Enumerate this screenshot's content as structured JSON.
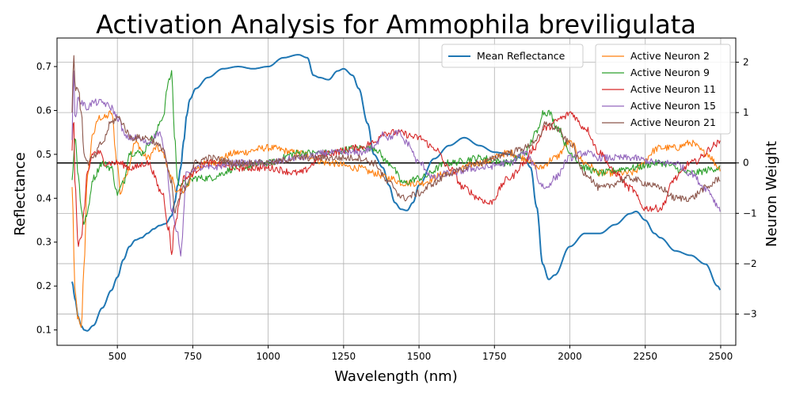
{
  "chart_data": {
    "type": "line",
    "title": "Activation Analysis for Ammophila breviligulata",
    "xlabel": "Wavelength (nm)",
    "ylabel_left": "Reflectance",
    "ylabel_right": "Neuron Weight",
    "xlim": [
      300,
      2550
    ],
    "ylim_left": [
      0.065,
      0.765
    ],
    "ylim_right": [
      -3.62,
      2.48
    ],
    "x_ticks": [
      500,
      750,
      1000,
      1250,
      1500,
      1750,
      2000,
      2250,
      2500
    ],
    "y_ticks_left": [
      0.1,
      0.2,
      0.3,
      0.4,
      0.5,
      0.6,
      0.7
    ],
    "y_ticks_right": [
      -3,
      -2,
      -1,
      0,
      1,
      2
    ],
    "grid": true,
    "zero_line_right": 0,
    "legend_left": {
      "placement": "top-center",
      "entries": [
        "Mean Reflectance"
      ]
    },
    "legend_right": {
      "placement": "top-right",
      "entries": [
        "Active Neuron 2",
        "Active Neuron 9",
        "Active Neuron 11",
        "Active Neuron 15",
        "Active Neuron 21"
      ]
    },
    "series": [
      {
        "name": "Mean Reflectance",
        "axis": "left",
        "color": "#1f77b4",
        "x": [
          350,
          360,
          370,
          380,
          390,
          400,
          420,
          450,
          480,
          500,
          520,
          540,
          560,
          580,
          600,
          620,
          640,
          660,
          680,
          690,
          700,
          710,
          720,
          730,
          740,
          760,
          800,
          850,
          900,
          950,
          1000,
          1050,
          1100,
          1130,
          1150,
          1170,
          1200,
          1230,
          1250,
          1280,
          1300,
          1330,
          1350,
          1380,
          1400,
          1420,
          1440,
          1460,
          1480,
          1500,
          1550,
          1600,
          1650,
          1700,
          1750,
          1800,
          1850,
          1870,
          1890,
          1910,
          1930,
          1950,
          2000,
          2050,
          2100,
          2150,
          2200,
          2220,
          2250,
          2280,
          2300,
          2350,
          2400,
          2450,
          2490,
          2500
        ],
        "values": [
          0.21,
          0.17,
          0.13,
          0.11,
          0.1,
          0.098,
          0.11,
          0.15,
          0.19,
          0.22,
          0.26,
          0.29,
          0.305,
          0.31,
          0.32,
          0.33,
          0.338,
          0.342,
          0.36,
          0.39,
          0.43,
          0.47,
          0.53,
          0.59,
          0.625,
          0.65,
          0.675,
          0.695,
          0.7,
          0.695,
          0.7,
          0.72,
          0.727,
          0.72,
          0.68,
          0.675,
          0.67,
          0.69,
          0.695,
          0.68,
          0.65,
          0.57,
          0.5,
          0.47,
          0.43,
          0.39,
          0.375,
          0.372,
          0.39,
          0.43,
          0.49,
          0.52,
          0.538,
          0.52,
          0.505,
          0.5,
          0.49,
          0.47,
          0.38,
          0.25,
          0.215,
          0.225,
          0.29,
          0.32,
          0.32,
          0.34,
          0.365,
          0.37,
          0.35,
          0.32,
          0.31,
          0.28,
          0.27,
          0.25,
          0.2,
          0.19
        ]
      },
      {
        "name": "Active Neuron 2",
        "axis": "right",
        "color": "#ff7f0e",
        "x": [
          350,
          360,
          370,
          380,
          390,
          400,
          420,
          440,
          460,
          480,
          500,
          510,
          530,
          560,
          600,
          630,
          650,
          680,
          700,
          730,
          760,
          800,
          900,
          1000,
          1100,
          1200,
          1300,
          1350,
          1400,
          1450,
          1500,
          1600,
          1700,
          1800,
          1850,
          1900,
          1950,
          2000,
          2050,
          2100,
          2200,
          2300,
          2350,
          2400,
          2450,
          2500
        ],
        "values": [
          -0.5,
          -2.6,
          -3.1,
          -3.3,
          -2.0,
          -0.3,
          0.6,
          0.9,
          0.9,
          1.0,
          0.0,
          -0.6,
          -0.2,
          0.4,
          0.1,
          0.3,
          0.2,
          -0.3,
          -0.6,
          -0.5,
          -0.1,
          0.0,
          0.2,
          0.3,
          0.2,
          0.0,
          -0.1,
          -0.2,
          -0.3,
          -0.4,
          -0.4,
          -0.2,
          0.0,
          0.2,
          0.1,
          -0.1,
          0.1,
          0.4,
          0.0,
          -0.2,
          -0.2,
          0.3,
          0.3,
          0.4,
          0.2,
          -0.1
        ]
      },
      {
        "name": "Active Neuron 9",
        "axis": "right",
        "color": "#2ca02c",
        "x": [
          350,
          360,
          370,
          380,
          390,
          400,
          420,
          450,
          480,
          500,
          520,
          540,
          580,
          620,
          650,
          670,
          680,
          690,
          700,
          730,
          760,
          800,
          900,
          1000,
          1100,
          1200,
          1300,
          1350,
          1400,
          1450,
          1500,
          1600,
          1700,
          1800,
          1850,
          1890,
          1910,
          1930,
          1960,
          2000,
          2050,
          2100,
          2200,
          2300,
          2400,
          2500
        ],
        "values": [
          -0.3,
          0.5,
          -0.2,
          -0.9,
          -1.2,
          -1.0,
          -0.3,
          0.0,
          -0.1,
          -0.6,
          -0.4,
          0.2,
          0.2,
          0.5,
          0.9,
          1.6,
          1.8,
          0.5,
          -0.4,
          -0.4,
          -0.3,
          -0.3,
          -0.1,
          0.0,
          0.2,
          0.2,
          0.3,
          0.3,
          0.0,
          -0.4,
          -0.3,
          0.0,
          0.1,
          0.0,
          0.2,
          0.6,
          1.0,
          1.0,
          0.7,
          0.2,
          -0.1,
          -0.2,
          -0.1,
          0.0,
          -0.2,
          -0.1
        ]
      },
      {
        "name": "Active Neuron 11",
        "axis": "right",
        "color": "#d62728",
        "x": [
          350,
          355,
          360,
          370,
          380,
          390,
          400,
          420,
          440,
          460,
          480,
          500,
          550,
          600,
          650,
          670,
          680,
          690,
          720,
          800,
          900,
          1000,
          1100,
          1200,
          1300,
          1350,
          1380,
          1400,
          1430,
          1500,
          1550,
          1600,
          1650,
          1700,
          1730,
          1800,
          1850,
          1880,
          1920,
          1980,
          2000,
          2050,
          2100,
          2150,
          2200,
          2250,
          2300,
          2350,
          2400,
          2500
        ],
        "values": [
          0.2,
          1.0,
          -0.5,
          -1.6,
          -1.5,
          -1.0,
          -0.2,
          0.2,
          0.2,
          0.0,
          0.0,
          0.0,
          -0.1,
          0.0,
          -0.6,
          -1.3,
          -1.8,
          -1.2,
          -0.3,
          0.0,
          -0.1,
          -0.1,
          -0.2,
          0.2,
          0.3,
          0.4,
          0.6,
          0.6,
          0.6,
          0.5,
          0.3,
          -0.1,
          -0.5,
          -0.7,
          -0.8,
          -0.3,
          0.0,
          0.3,
          0.7,
          0.9,
          1.0,
          0.7,
          0.2,
          -0.2,
          -0.5,
          -0.9,
          -0.9,
          -0.3,
          0.0,
          0.4
        ]
      },
      {
        "name": "Active Neuron 15",
        "axis": "right",
        "color": "#9467bd",
        "x": [
          350,
          355,
          360,
          370,
          380,
          400,
          420,
          450,
          480,
          500,
          530,
          560,
          600,
          640,
          660,
          680,
          700,
          710,
          730,
          760,
          800,
          900,
          1000,
          1100,
          1200,
          1300,
          1350,
          1380,
          1400,
          1430,
          1460,
          1500,
          1550,
          1600,
          1700,
          1800,
          1850,
          1880,
          1900,
          1920,
          1950,
          2000,
          2050,
          2100,
          2200,
          2300,
          2350,
          2400,
          2450,
          2500
        ],
        "values": [
          0.5,
          2.0,
          0.8,
          1.3,
          1.2,
          1.1,
          1.2,
          1.2,
          1.1,
          0.9,
          0.5,
          0.5,
          0.4,
          0.6,
          0.1,
          -0.9,
          -1.4,
          -1.8,
          -0.2,
          -0.1,
          -0.1,
          0.0,
          0.0,
          0.1,
          0.2,
          0.2,
          0.3,
          0.6,
          0.5,
          0.6,
          0.4,
          0.0,
          -0.3,
          -0.2,
          -0.1,
          0.0,
          0.2,
          0.0,
          -0.4,
          -0.5,
          -0.3,
          0.1,
          0.2,
          0.1,
          0.1,
          0.0,
          0.0,
          -0.2,
          -0.5,
          -0.9
        ]
      },
      {
        "name": "Active Neuron 21",
        "axis": "right",
        "color": "#8c564b",
        "x": [
          350,
          355,
          360,
          370,
          380,
          390,
          400,
          420,
          450,
          480,
          500,
          550,
          600,
          650,
          680,
          690,
          700,
          720,
          760,
          800,
          900,
          1000,
          1100,
          1200,
          1300,
          1350,
          1400,
          1450,
          1500,
          1550,
          1600,
          1700,
          1800,
          1850,
          1900,
          1920,
          1950,
          2000,
          2050,
          2100,
          2200,
          2250,
          2300,
          2350,
          2400,
          2450,
          2500
        ],
        "values": [
          1.0,
          2.2,
          1.5,
          1.5,
          1.0,
          0.2,
          0.0,
          0.1,
          0.4,
          0.8,
          0.9,
          0.5,
          0.5,
          0.3,
          -0.4,
          -1.0,
          -0.8,
          -0.5,
          0.0,
          0.1,
          0.0,
          0.0,
          0.1,
          0.1,
          0.1,
          0.0,
          -0.4,
          -0.7,
          -0.6,
          -0.4,
          -0.2,
          0.0,
          0.2,
          0.3,
          0.5,
          0.8,
          0.7,
          0.4,
          -0.2,
          -0.5,
          -0.3,
          -0.4,
          -0.5,
          -0.7,
          -0.7,
          -0.5,
          -0.3
        ]
      }
    ]
  }
}
